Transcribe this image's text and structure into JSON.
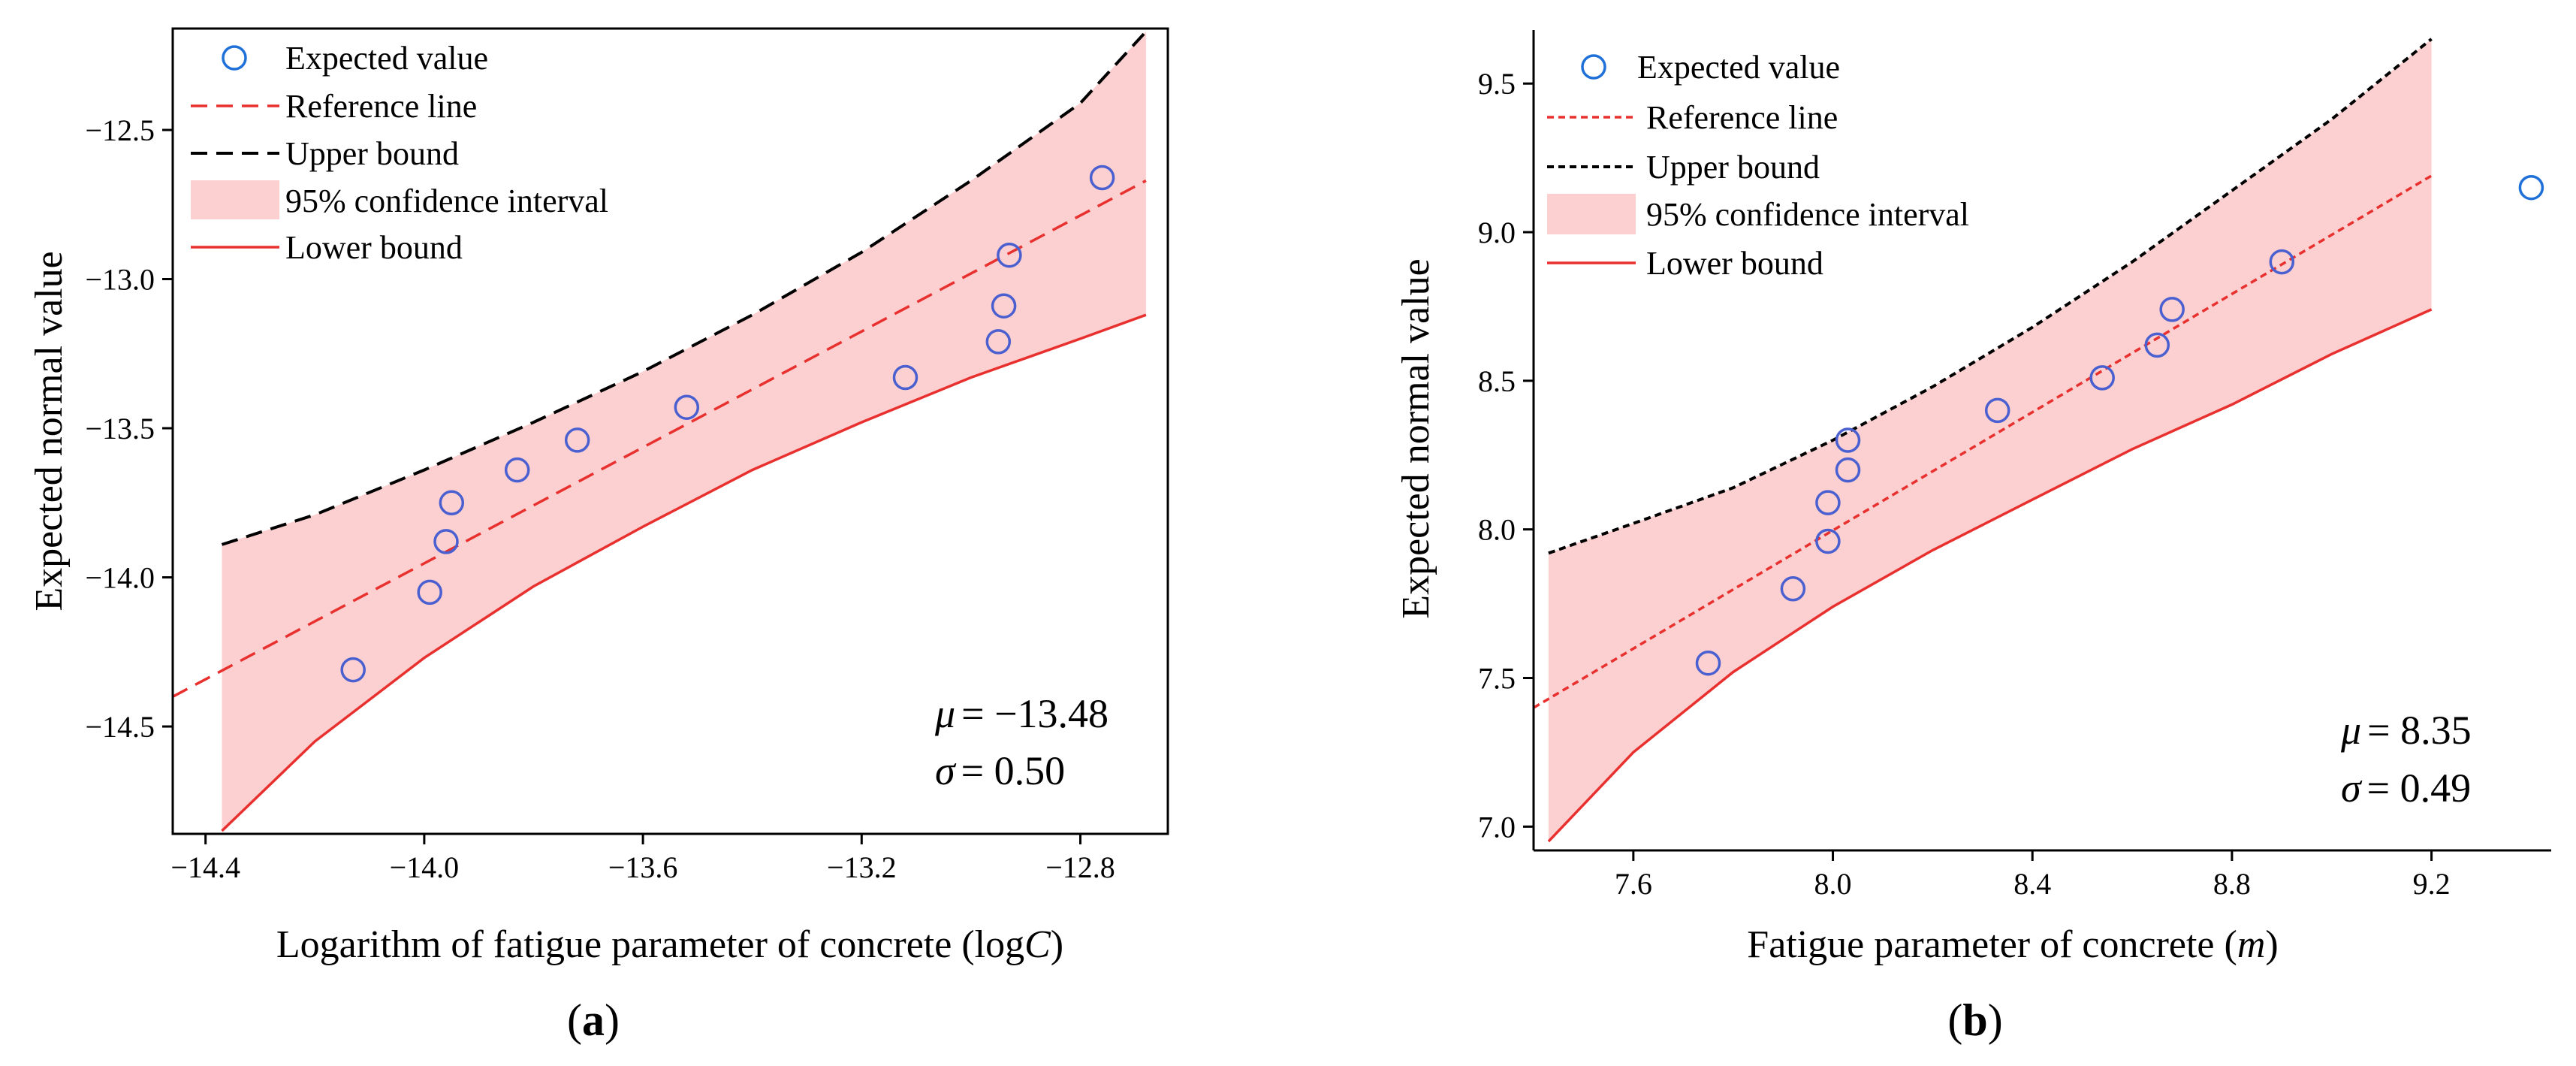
{
  "chart_data": [
    {
      "type": "scatter",
      "panel_label": "(a)",
      "xlabel": "Logarithm of fatigue parameter of concrete (logC)",
      "xlabel_plain": "Logarithm of fatigue parameter of concrete (log",
      "xlabel_italic": "C",
      "xlabel_end": ")",
      "ylabel": "Expected normal value",
      "xlim": [
        -14.46,
        -12.64
      ],
      "ylim": [
        -14.86,
        -12.16
      ],
      "xticks": [
        -14.4,
        -14.0,
        -13.6,
        -13.2,
        -12.8
      ],
      "xtick_labels": [
        "−14.4",
        "−14.0",
        "−13.6",
        "−13.2",
        "−12.8"
      ],
      "yticks": [
        -14.5,
        -14.0,
        -13.5,
        -13.0,
        -12.5
      ],
      "ytick_labels": [
        "−14.5",
        "−14.0",
        "−13.5",
        "−13.0",
        "−12.5"
      ],
      "legend": {
        "position": "top-left",
        "entries": [
          "Expected value",
          "Reference line",
          "Upper bound",
          "95% confidence interval",
          "Lower bound"
        ]
      },
      "stats": {
        "mu_label": "μ",
        "mu_value": "= −13.48",
        "sigma_label": "σ",
        "sigma_value": "= 0.50"
      },
      "series": [
        {
          "name": "Expected value",
          "kind": "scatter",
          "color": "#4a5fd0",
          "points": [
            [
              -14.13,
              -14.31
            ],
            [
              -13.99,
              -14.05
            ],
            [
              -13.96,
              -13.88
            ],
            [
              -13.95,
              -13.75
            ],
            [
              -13.83,
              -13.64
            ],
            [
              -13.72,
              -13.54
            ],
            [
              -13.52,
              -13.43
            ],
            [
              -13.12,
              -13.33
            ],
            [
              -12.95,
              -13.21
            ],
            [
              -12.94,
              -13.09
            ],
            [
              -12.93,
              -12.92
            ],
            [
              -12.76,
              -12.66
            ]
          ]
        },
        {
          "name": "Reference line",
          "kind": "line",
          "style": "dashed",
          "color": "#e8302f",
          "points": [
            [
              -14.46,
              -14.4
            ],
            [
              -12.68,
              -12.67
            ]
          ]
        },
        {
          "name": "Upper bound",
          "kind": "line",
          "style": "dashed",
          "color": "#000000",
          "points": [
            [
              -14.37,
              -13.89
            ],
            [
              -14.2,
              -13.79
            ],
            [
              -14.0,
              -13.64
            ],
            [
              -13.8,
              -13.48
            ],
            [
              -13.6,
              -13.31
            ],
            [
              -13.4,
              -13.12
            ],
            [
              -13.2,
              -12.91
            ],
            [
              -13.0,
              -12.67
            ],
            [
              -12.8,
              -12.41
            ],
            [
              -12.68,
              -12.17
            ]
          ]
        },
        {
          "name": "Lower bound",
          "kind": "line",
          "style": "solid",
          "color": "#e8302f",
          "points": [
            [
              -14.37,
              -14.85
            ],
            [
              -14.2,
              -14.55
            ],
            [
              -14.0,
              -14.27
            ],
            [
              -13.8,
              -14.03
            ],
            [
              -13.6,
              -13.83
            ],
            [
              -13.4,
              -13.64
            ],
            [
              -13.2,
              -13.48
            ],
            [
              -13.0,
              -13.33
            ],
            [
              -12.8,
              -13.2
            ],
            [
              -12.68,
              -13.12
            ]
          ]
        }
      ],
      "colors": {
        "ci_fill": "#fcd0d0"
      }
    },
    {
      "type": "scatter",
      "panel_label": "(b)",
      "xlabel": "Fatigue parameter of concrete (m)",
      "xlabel_plain": "Fatigue parameter of concrete (",
      "xlabel_italic": "m",
      "xlabel_end": ")",
      "ylabel": "Expected normal value",
      "xlim": [
        7.4,
        9.44
      ],
      "ylim": [
        6.92,
        9.68
      ],
      "xticks": [
        7.6,
        8.0,
        8.4,
        8.8,
        9.2
      ],
      "xtick_labels": [
        "7.6",
        "8.0",
        "8.4",
        "8.8",
        "9.2"
      ],
      "yticks": [
        7.0,
        7.5,
        8.0,
        8.5,
        9.0,
        9.5
      ],
      "ytick_labels": [
        "7.0",
        "7.5",
        "8.0",
        "8.5",
        "9.0",
        "9.5"
      ],
      "legend": {
        "position": "top-left",
        "entries": [
          "Expected value",
          "Reference line",
          "Upper bound",
          "95% confidence interval",
          "Lower bound"
        ]
      },
      "stats": {
        "mu_label": "μ",
        "mu_value": "= 8.35",
        "sigma_label": "σ",
        "sigma_value": "= 0.49"
      },
      "series": [
        {
          "name": "Expected value",
          "kind": "scatter",
          "color": "#4a5fd0",
          "points": [
            [
              7.75,
              7.55
            ],
            [
              7.92,
              7.8
            ],
            [
              7.99,
              7.96
            ],
            [
              7.99,
              8.09
            ],
            [
              8.03,
              8.2
            ],
            [
              8.03,
              8.3
            ],
            [
              8.33,
              8.4
            ],
            [
              8.54,
              8.51
            ],
            [
              8.65,
              8.62
            ],
            [
              8.68,
              8.74
            ],
            [
              8.9,
              8.9
            ]
          ]
        },
        {
          "name": "Expected value (outlier)",
          "kind": "scatter",
          "color": "#1f70d8",
          "points": [
            [
              9.4,
              9.15
            ]
          ]
        },
        {
          "name": "Reference line",
          "kind": "line",
          "style": "dotted",
          "color": "#e8302f",
          "points": [
            [
              7.4,
              7.4
            ],
            [
              9.2,
              9.19
            ]
          ]
        },
        {
          "name": "Upper bound",
          "kind": "line",
          "style": "dotted",
          "color": "#000000",
          "points": [
            [
              7.43,
              7.92
            ],
            [
              7.6,
              8.02
            ],
            [
              7.8,
              8.14
            ],
            [
              8.0,
              8.3
            ],
            [
              8.2,
              8.48
            ],
            [
              8.4,
              8.68
            ],
            [
              8.6,
              8.9
            ],
            [
              8.8,
              9.14
            ],
            [
              9.0,
              9.38
            ],
            [
              9.2,
              9.65
            ]
          ]
        },
        {
          "name": "Lower bound",
          "kind": "line",
          "style": "solid",
          "color": "#e8302f",
          "points": [
            [
              7.43,
              6.95
            ],
            [
              7.6,
              7.25
            ],
            [
              7.8,
              7.52
            ],
            [
              8.0,
              7.74
            ],
            [
              8.2,
              7.93
            ],
            [
              8.4,
              8.1
            ],
            [
              8.6,
              8.27
            ],
            [
              8.8,
              8.42
            ],
            [
              9.0,
              8.59
            ],
            [
              9.2,
              8.74
            ]
          ]
        }
      ],
      "colors": {
        "ci_fill": "#fcd0d0"
      }
    }
  ]
}
